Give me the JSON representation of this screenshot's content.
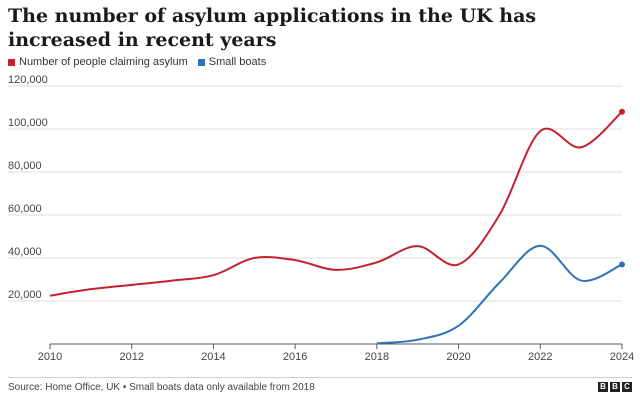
{
  "header": {
    "title": "The number of asylum applications in the UK has increased in recent years"
  },
  "footer": {
    "source": "Source: Home Office, UK • Small boats data only available from 2018",
    "logo_letters": [
      "B",
      "B",
      "C"
    ]
  },
  "chart_data": {
    "type": "line",
    "title": "The number of asylum applications in the UK has increased in recent years",
    "xlabel": "",
    "ylabel": "",
    "xlim": [
      2010,
      2024
    ],
    "ylim": [
      0,
      120000
    ],
    "x_ticks": [
      "2010",
      "2012",
      "2014",
      "2016",
      "2018",
      "2020",
      "2022",
      "2024"
    ],
    "y_ticks": [
      "20,000",
      "40,000",
      "60,000",
      "80,000",
      "100,000",
      "120,000"
    ],
    "y_tick_values": [
      20000,
      40000,
      60000,
      80000,
      100000,
      120000
    ],
    "grid": "horizontal",
    "legend": "top-left",
    "series": [
      {
        "name": "Number of people claiming asylum",
        "color": "#c3222e",
        "x": [
          2010,
          2011,
          2012,
          2013,
          2014,
          2015,
          2016,
          2017,
          2018,
          2019,
          2020,
          2021,
          2022,
          2023,
          2024
        ],
        "values": [
          22500,
          25500,
          27500,
          29500,
          32000,
          40000,
          39000,
          34500,
          38000,
          45500,
          37000,
          60000,
          99000,
          91500,
          108000
        ]
      },
      {
        "name": "Small boats",
        "color": "#2e72b8",
        "x": [
          2018,
          2019,
          2020,
          2021,
          2022,
          2023,
          2024
        ],
        "values": [
          300,
          2000,
          8500,
          28500,
          45700,
          29500,
          37000
        ]
      }
    ]
  }
}
